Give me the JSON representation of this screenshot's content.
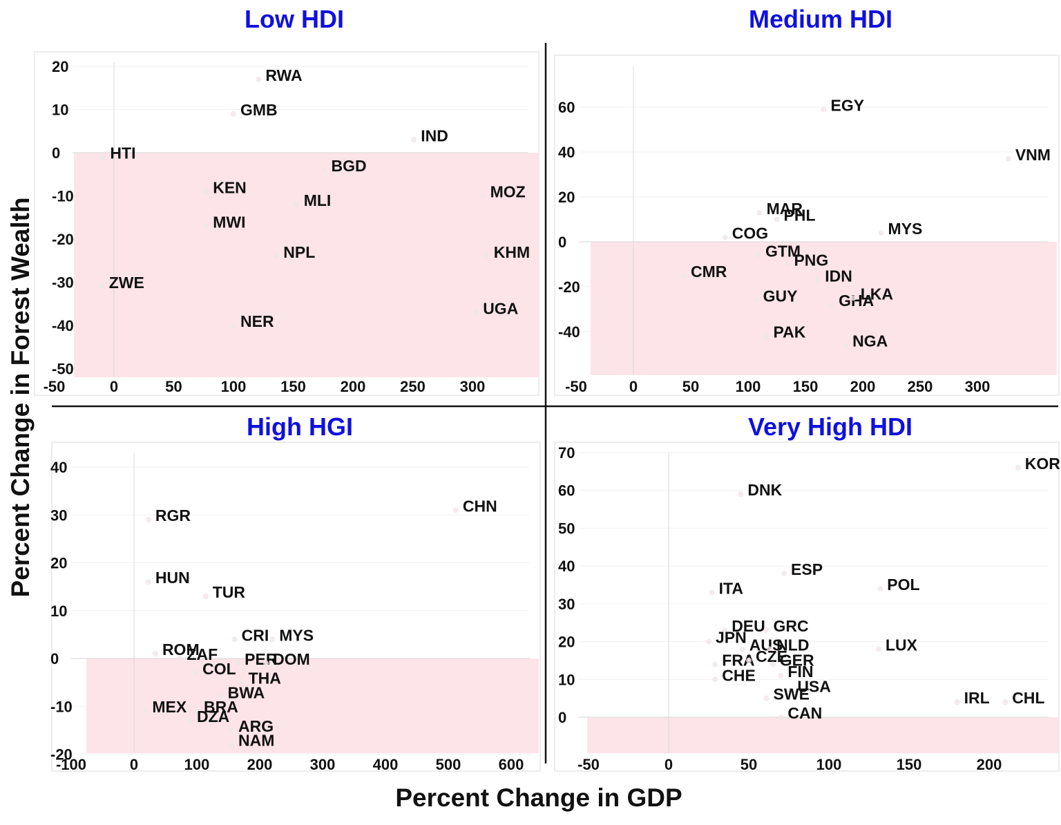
{
  "chart_data": {
    "type": "scatter",
    "xlabel": "Percent Change in GDP",
    "ylabel": "Percent Change in Forest Wealth",
    "colors": {
      "title": "#1010e0",
      "negative_region": "#fde4e8",
      "text": "#111111"
    },
    "panels": [
      {
        "title": "Low HDI",
        "xlim": [
          -50,
          360
        ],
        "ylim": [
          -50,
          22
        ],
        "xticks": [
          -50,
          0,
          50,
          100,
          150,
          200,
          250,
          300
        ],
        "yticks": [
          20,
          10,
          0,
          -10,
          -20,
          -30,
          -40,
          -50
        ],
        "points": [
          {
            "label": "RWA",
            "x": 121,
            "y": 17
          },
          {
            "label": "GMB",
            "x": 100,
            "y": 9
          },
          {
            "label": "HTI",
            "x": -9,
            "y": -1
          },
          {
            "label": "IND",
            "x": 251,
            "y": 3
          },
          {
            "label": "BGD",
            "x": 176,
            "y": -4
          },
          {
            "label": "KEN",
            "x": 77,
            "y": -9
          },
          {
            "label": "MLI",
            "x": 153,
            "y": -12
          },
          {
            "label": "MOZ",
            "x": 309,
            "y": -10
          },
          {
            "label": "MWI",
            "x": 77,
            "y": -17
          },
          {
            "label": "NPL",
            "x": 136,
            "y": -24
          },
          {
            "label": "KHM",
            "x": 312,
            "y": -24
          },
          {
            "label": "ZWE",
            "x": -10,
            "y": -31
          },
          {
            "label": "NER",
            "x": 100,
            "y": -40
          },
          {
            "label": "UGA",
            "x": 303,
            "y": -37
          }
        ]
      },
      {
        "title": "Medium HDI",
        "xlim": [
          -50,
          370
        ],
        "ylim": [
          -60,
          82
        ],
        "xticks": [
          -50,
          0,
          50,
          100,
          150,
          200,
          250,
          300
        ],
        "yticks": [
          60,
          40,
          20,
          0,
          -20,
          -40
        ],
        "points": [
          {
            "label": "EGY",
            "x": 166,
            "y": 59
          },
          {
            "label": "VNM",
            "x": 327,
            "y": 37
          },
          {
            "label": "MAR",
            "x": 110,
            "y": 13
          },
          {
            "label": "PHL",
            "x": 125,
            "y": 10
          },
          {
            "label": "COG",
            "x": 80,
            "y": 2
          },
          {
            "label": "GTM",
            "x": 109,
            "y": -6
          },
          {
            "label": "MYS",
            "x": 216,
            "y": 4
          },
          {
            "label": "PNG",
            "x": 134,
            "y": -10
          },
          {
            "label": "CMR",
            "x": 44,
            "y": -15
          },
          {
            "label": "GUY",
            "x": 107,
            "y": -26
          },
          {
            "label": "IDN",
            "x": 161,
            "y": -17
          },
          {
            "label": "GHA",
            "x": 173,
            "y": -28
          },
          {
            "label": "LKA",
            "x": 192,
            "y": -25
          },
          {
            "label": "PAK",
            "x": 116,
            "y": -42
          },
          {
            "label": "NGA",
            "x": 185,
            "y": -46
          }
        ]
      },
      {
        "title": "High HGI",
        "xlim": [
          -100,
          650
        ],
        "ylim": [
          -22,
          44
        ],
        "xticks": [
          -100,
          0,
          100,
          200,
          300,
          400,
          500,
          600
        ],
        "yticks": [
          40,
          30,
          20,
          10,
          0,
          -10,
          -20
        ],
        "points": [
          {
            "label": "CHN",
            "x": 512,
            "y": 31
          },
          {
            "label": "RGR",
            "x": 23,
            "y": 29
          },
          {
            "label": "HUN",
            "x": 23,
            "y": 16
          },
          {
            "label": "TUR",
            "x": 114,
            "y": 13
          },
          {
            "label": "ROM",
            "x": 34,
            "y": 1
          },
          {
            "label": "ZAF",
            "x": 73,
            "y": 0
          },
          {
            "label": "CRI",
            "x": 160,
            "y": 4
          },
          {
            "label": "MYS",
            "x": 220,
            "y": 4
          },
          {
            "label": "PER",
            "x": 165,
            "y": -1
          },
          {
            "label": "DOM",
            "x": 210,
            "y": -1
          },
          {
            "label": "COL",
            "x": 98,
            "y": -3
          },
          {
            "label": "THA",
            "x": 171,
            "y": -5
          },
          {
            "label": "BWA",
            "x": 138,
            "y": -8
          },
          {
            "label": "MEX",
            "x": 18,
            "y": -11
          },
          {
            "label": "BRA",
            "x": 100,
            "y": -11
          },
          {
            "label": "DZA",
            "x": 89,
            "y": -13
          },
          {
            "label": "ARG",
            "x": 155,
            "y": -15
          },
          {
            "label": "NAM",
            "x": 155,
            "y": -18
          }
        ]
      },
      {
        "title": "Very High HDI",
        "xlim": [
          -50,
          228
        ],
        "ylim": [
          -10,
          72
        ],
        "xticks": [
          -50,
          0,
          50,
          100,
          150,
          200
        ],
        "yticks": [
          70,
          60,
          50,
          40,
          30,
          20,
          10,
          0
        ],
        "points": [
          {
            "label": "KOR",
            "x": 218,
            "y": 66
          },
          {
            "label": "DNK",
            "x": 45,
            "y": 59
          },
          {
            "label": "ESP",
            "x": 72,
            "y": 38
          },
          {
            "label": "ITA",
            "x": 27,
            "y": 33
          },
          {
            "label": "POL",
            "x": 132,
            "y": 34
          },
          {
            "label": "DEU",
            "x": 35,
            "y": 23
          },
          {
            "label": "GRC",
            "x": 61,
            "y": 23
          },
          {
            "label": "JPN",
            "x": 25,
            "y": 20
          },
          {
            "label": "AUS",
            "x": 46,
            "y": 18
          },
          {
            "label": "NLD",
            "x": 63,
            "y": 18
          },
          {
            "label": "LUX",
            "x": 131,
            "y": 18
          },
          {
            "label": "FRA",
            "x": 29,
            "y": 14
          },
          {
            "label": "CZE",
            "x": 50,
            "y": 15
          },
          {
            "label": "GER",
            "x": 65,
            "y": 14
          },
          {
            "label": "FIN",
            "x": 70,
            "y": 11
          },
          {
            "label": "CHE",
            "x": 29,
            "y": 10
          },
          {
            "label": "USA",
            "x": 76,
            "y": 7
          },
          {
            "label": "SWE",
            "x": 61,
            "y": 5
          },
          {
            "label": "IRL",
            "x": 180,
            "y": 4
          },
          {
            "label": "CHL",
            "x": 210,
            "y": 4
          },
          {
            "label": "CAN",
            "x": 70,
            "y": 0
          }
        ]
      }
    ]
  }
}
